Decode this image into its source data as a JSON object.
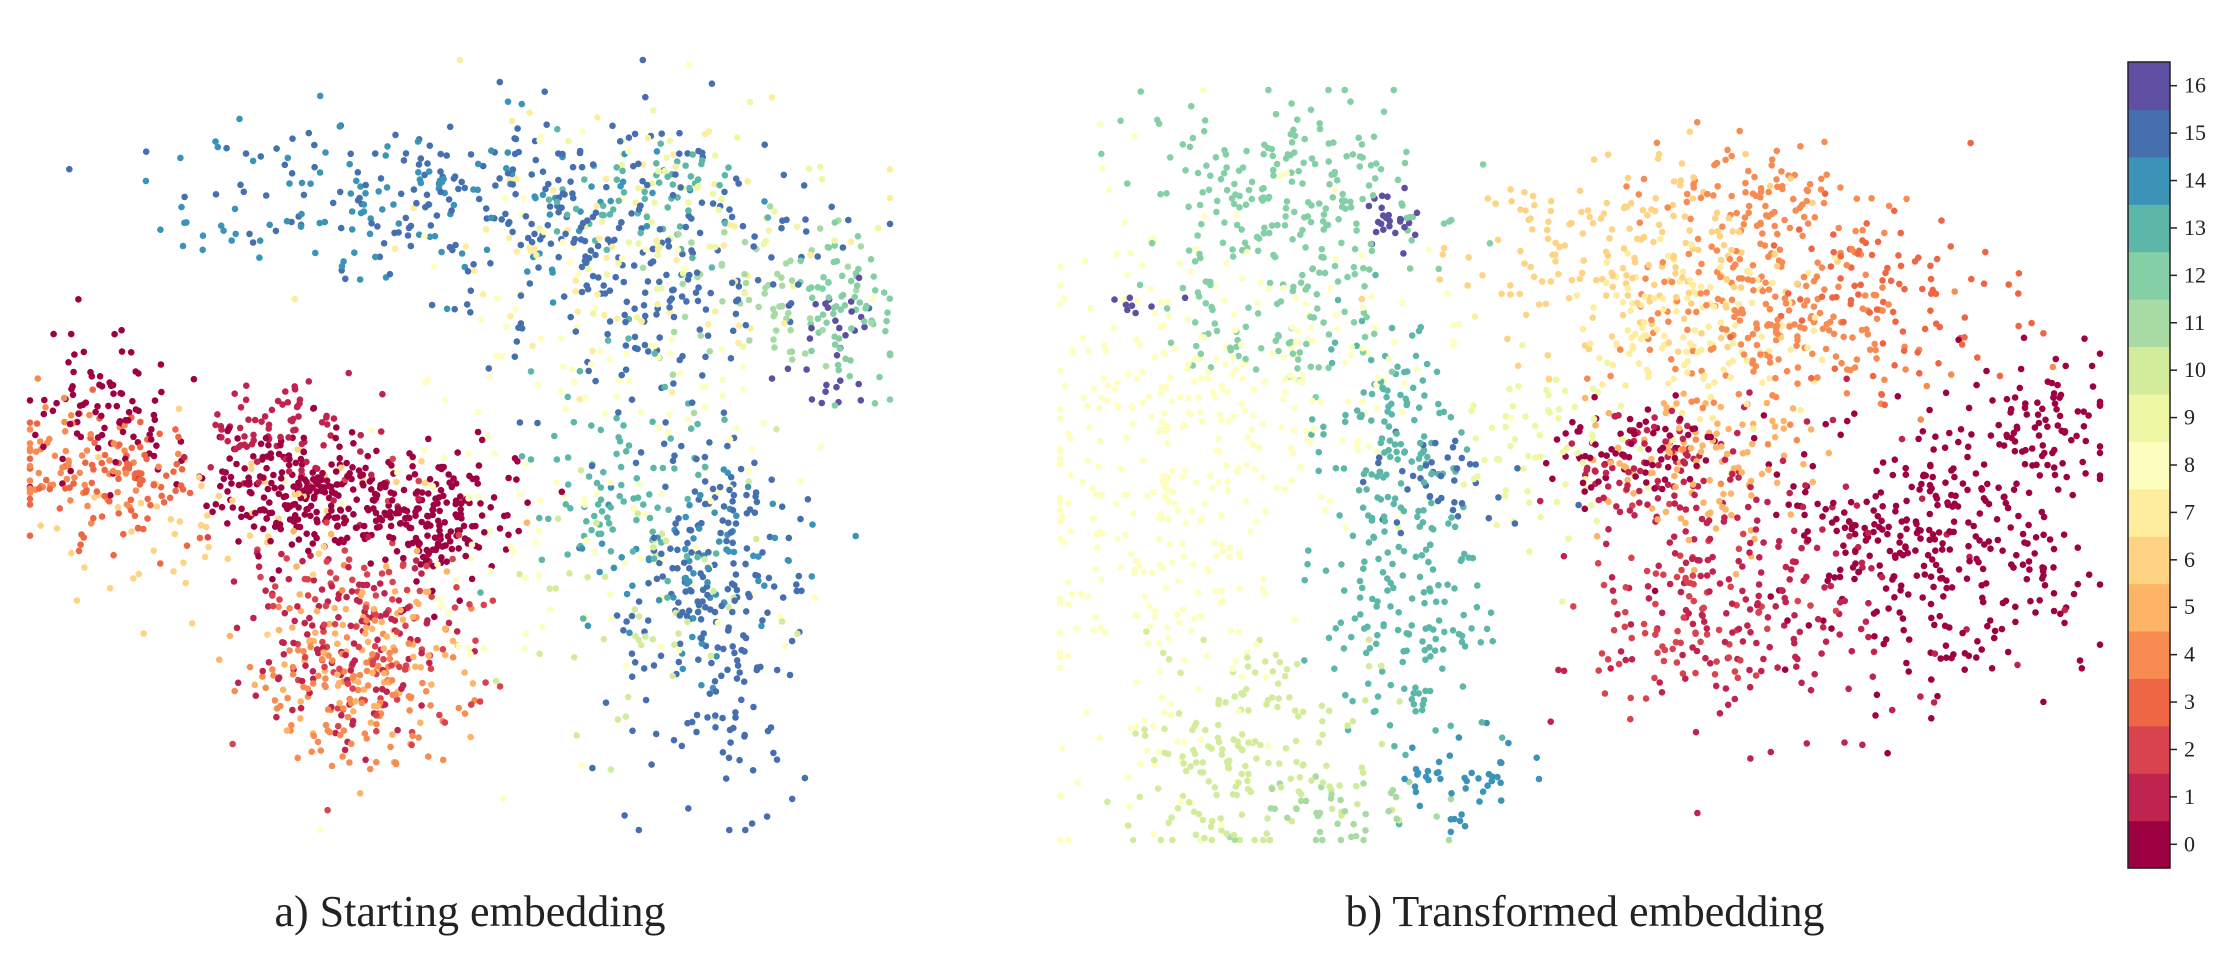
{
  "palette": [
    "#9e0142",
    "#c0234e",
    "#d8434e",
    "#ef6645",
    "#f78b51",
    "#fdb466",
    "#fed383",
    "#feec9f",
    "#fefebe",
    "#eef8a4",
    "#d2ec9c",
    "#a8dba4",
    "#84cfa5",
    "#5db7a9",
    "#3b93b8",
    "#466fb0",
    "#5e4fa2"
  ],
  "chart_data": [
    {
      "type": "scatter",
      "title": "a) Starting embedding",
      "xlabel": "",
      "ylabel": "",
      "xlim": [
        0,
        100
      ],
      "ylim": [
        0,
        100
      ],
      "axes": "off",
      "color_by": "class",
      "clusters": [
        {
          "class": 0,
          "center": [
            33,
            44
          ],
          "spread": [
            6,
            4
          ],
          "count": 260
        },
        {
          "class": 0,
          "center": [
            48,
            40
          ],
          "spread": [
            4,
            4
          ],
          "count": 160
        },
        {
          "class": 0,
          "center": [
            8,
            55
          ],
          "spread": [
            5,
            5
          ],
          "count": 90
        },
        {
          "class": 1,
          "center": [
            36,
            25
          ],
          "spread": [
            6,
            7
          ],
          "count": 130
        },
        {
          "class": 1,
          "center": [
            30,
            52
          ],
          "spread": [
            5,
            3
          ],
          "count": 80
        },
        {
          "class": 2,
          "center": [
            40,
            28
          ],
          "spread": [
            7,
            9
          ],
          "count": 110
        },
        {
          "class": 3,
          "center": [
            10,
            45
          ],
          "spread": [
            5,
            5
          ],
          "count": 90
        },
        {
          "class": 4,
          "center": [
            38,
            18
          ],
          "spread": [
            6,
            5
          ],
          "count": 120
        },
        {
          "class": 4,
          "center": [
            6,
            48
          ],
          "spread": [
            5,
            4
          ],
          "count": 70
        },
        {
          "class": 5,
          "center": [
            40,
            24
          ],
          "spread": [
            6,
            7
          ],
          "count": 100
        },
        {
          "class": 6,
          "center": [
            20,
            40
          ],
          "spread": [
            10,
            6
          ],
          "count": 60
        },
        {
          "class": 7,
          "center": [
            70,
            75
          ],
          "spread": [
            12,
            10
          ],
          "count": 70
        },
        {
          "class": 8,
          "center": [
            65,
            50
          ],
          "spread": [
            12,
            18
          ],
          "count": 160
        },
        {
          "class": 9,
          "center": [
            78,
            78
          ],
          "spread": [
            8,
            6
          ],
          "count": 60
        },
        {
          "class": 10,
          "center": [
            72,
            30
          ],
          "spread": [
            8,
            10
          ],
          "count": 50
        },
        {
          "class": 11,
          "center": [
            85,
            70
          ],
          "spread": [
            6,
            6
          ],
          "count": 60
        },
        {
          "class": 12,
          "center": [
            95,
            68
          ],
          "spread": [
            3,
            5
          ],
          "count": 70
        },
        {
          "class": 13,
          "center": [
            68,
            45
          ],
          "spread": [
            6,
            8
          ],
          "count": 90
        },
        {
          "class": 13,
          "center": [
            72,
            82
          ],
          "spread": [
            6,
            4
          ],
          "count": 60
        },
        {
          "class": 14,
          "center": [
            45,
            82
          ],
          "spread": [
            14,
            6
          ],
          "count": 120
        },
        {
          "class": 14,
          "center": [
            78,
            35
          ],
          "spread": [
            6,
            6
          ],
          "count": 70
        },
        {
          "class": 15,
          "center": [
            70,
            75
          ],
          "spread": [
            10,
            9
          ],
          "count": 220
        },
        {
          "class": 15,
          "center": [
            80,
            30
          ],
          "spread": [
            5,
            15
          ],
          "count": 230
        },
        {
          "class": 15,
          "center": [
            45,
            83
          ],
          "spread": [
            12,
            5
          ],
          "count": 120
        },
        {
          "class": 16,
          "center": [
            93,
            62
          ],
          "spread": [
            2,
            4
          ],
          "count": 30
        }
      ]
    },
    {
      "type": "scatter",
      "title": "b) Transformed embedding",
      "xlabel": "",
      "ylabel": "",
      "xlim": [
        0,
        100
      ],
      "ylim": [
        0,
        100
      ],
      "axes": "off",
      "color_by": "class",
      "clusters": [
        {
          "class": 0,
          "center": [
            84,
            40
          ],
          "spread": [
            7,
            9
          ],
          "count": 330
        },
        {
          "class": 0,
          "center": [
            95,
            55
          ],
          "spread": [
            3,
            5
          ],
          "count": 80
        },
        {
          "class": 0,
          "center": [
            55,
            52
          ],
          "spread": [
            4,
            3
          ],
          "count": 80
        },
        {
          "class": 1,
          "center": [
            68,
            33
          ],
          "spread": [
            8,
            9
          ],
          "count": 200
        },
        {
          "class": 1,
          "center": [
            57,
            50
          ],
          "spread": [
            4,
            4
          ],
          "count": 80
        },
        {
          "class": 2,
          "center": [
            60,
            28
          ],
          "spread": [
            5,
            6
          ],
          "count": 80
        },
        {
          "class": 3,
          "center": [
            80,
            72
          ],
          "spread": [
            6,
            6
          ],
          "count": 90
        },
        {
          "class": 4,
          "center": [
            70,
            70
          ],
          "spread": [
            7,
            8
          ],
          "count": 230
        },
        {
          "class": 4,
          "center": [
            68,
            86
          ],
          "spread": [
            5,
            4
          ],
          "count": 70
        },
        {
          "class": 5,
          "center": [
            62,
            50
          ],
          "spread": [
            5,
            5
          ],
          "count": 110
        },
        {
          "class": 6,
          "center": [
            55,
            78
          ],
          "spread": [
            9,
            7
          ],
          "count": 180
        },
        {
          "class": 7,
          "center": [
            62,
            68
          ],
          "spread": [
            6,
            6
          ],
          "count": 130
        },
        {
          "class": 8,
          "center": [
            10,
            45
          ],
          "spread": [
            7,
            20
          ],
          "count": 300
        },
        {
          "class": 8,
          "center": [
            20,
            62
          ],
          "spread": [
            10,
            8
          ],
          "count": 140
        },
        {
          "class": 9,
          "center": [
            46,
            52
          ],
          "spread": [
            5,
            6
          ],
          "count": 70
        },
        {
          "class": 10,
          "center": [
            18,
            10
          ],
          "spread": [
            6,
            8
          ],
          "count": 170
        },
        {
          "class": 11,
          "center": [
            27,
            4
          ],
          "spread": [
            5,
            3
          ],
          "count": 40
        },
        {
          "class": 12,
          "center": [
            22,
            85
          ],
          "spread": [
            7,
            7
          ],
          "count": 230
        },
        {
          "class": 12,
          "center": [
            20,
            67
          ],
          "spread": [
            5,
            3
          ],
          "count": 50
        },
        {
          "class": 13,
          "center": [
            32,
            52
          ],
          "spread": [
            3,
            8
          ],
          "count": 140
        },
        {
          "class": 13,
          "center": [
            34,
            28
          ],
          "spread": [
            4,
            8
          ],
          "count": 130
        },
        {
          "class": 14,
          "center": [
            39,
            8
          ],
          "spread": [
            3,
            3
          ],
          "count": 45
        },
        {
          "class": 15,
          "center": [
            37,
            48
          ],
          "spread": [
            4,
            3
          ],
          "count": 40
        },
        {
          "class": 16,
          "center": [
            32,
            83
          ],
          "spread": [
            1.5,
            2
          ],
          "count": 25
        },
        {
          "class": 16,
          "center": [
            7,
            72
          ],
          "spread": [
            2,
            1
          ],
          "count": 8
        }
      ]
    }
  ],
  "colorbar": {
    "labels": [
      "0",
      "1",
      "2",
      "3",
      "4",
      "5",
      "6",
      "7",
      "8",
      "9",
      "10",
      "11",
      "12",
      "13",
      "14",
      "15",
      "16"
    ]
  }
}
